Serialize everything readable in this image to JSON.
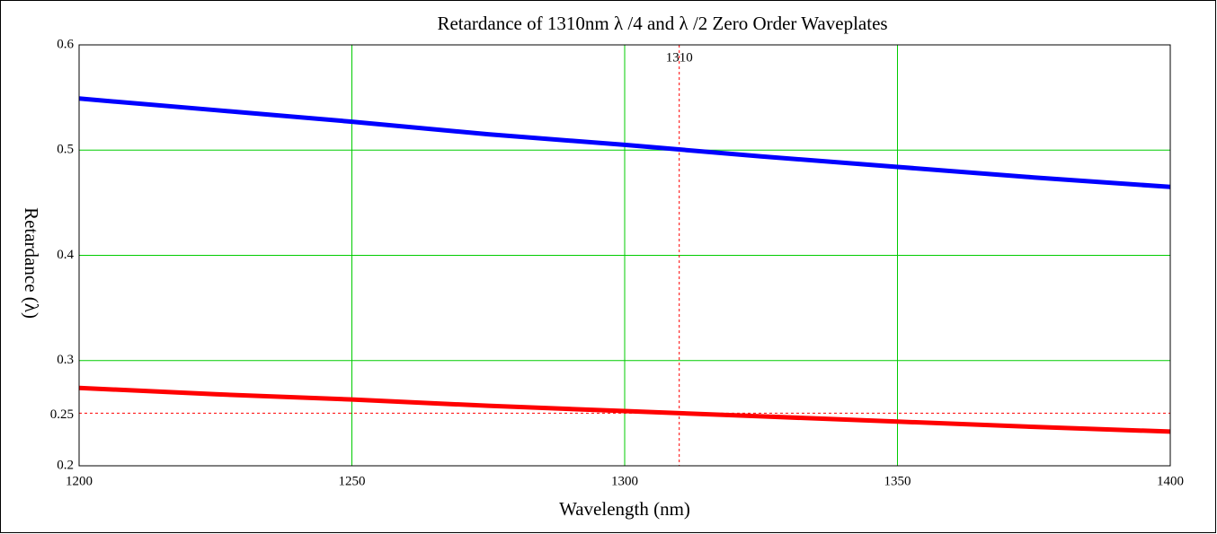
{
  "chart_data": {
    "type": "line",
    "title": "Retardance of 1310nm  λ /4 and  λ /2 Zero Order Waveplates",
    "x_label": "Wavelength (nm)",
    "y_label": "Retardance (λ)",
    "x": [
      1200,
      1225,
      1250,
      1275,
      1300,
      1325,
      1350,
      1375,
      1400
    ],
    "series": [
      {
        "color": "#0000ff",
        "values": [
          0.549,
          0.538,
          0.527,
          0.515,
          0.505,
          0.494,
          0.484,
          0.474,
          0.465
        ]
      },
      {
        "color": "#ff0000",
        "values": [
          0.274,
          0.268,
          0.263,
          0.257,
          0.252,
          0.247,
          0.242,
          0.237,
          0.2325
        ]
      }
    ],
    "xlim": [
      1200,
      1400
    ],
    "xticks": [
      1200,
      1250,
      1300,
      1350,
      1400
    ],
    "ylim": [
      0.2,
      0.6
    ],
    "yticks": [
      0.2,
      0.3,
      0.4,
      0.5,
      0.6
    ],
    "grid": true,
    "grid_color": "#00cc00",
    "markers": {
      "x": 1310,
      "y": 0.25,
      "color": "#ff0000"
    }
  }
}
